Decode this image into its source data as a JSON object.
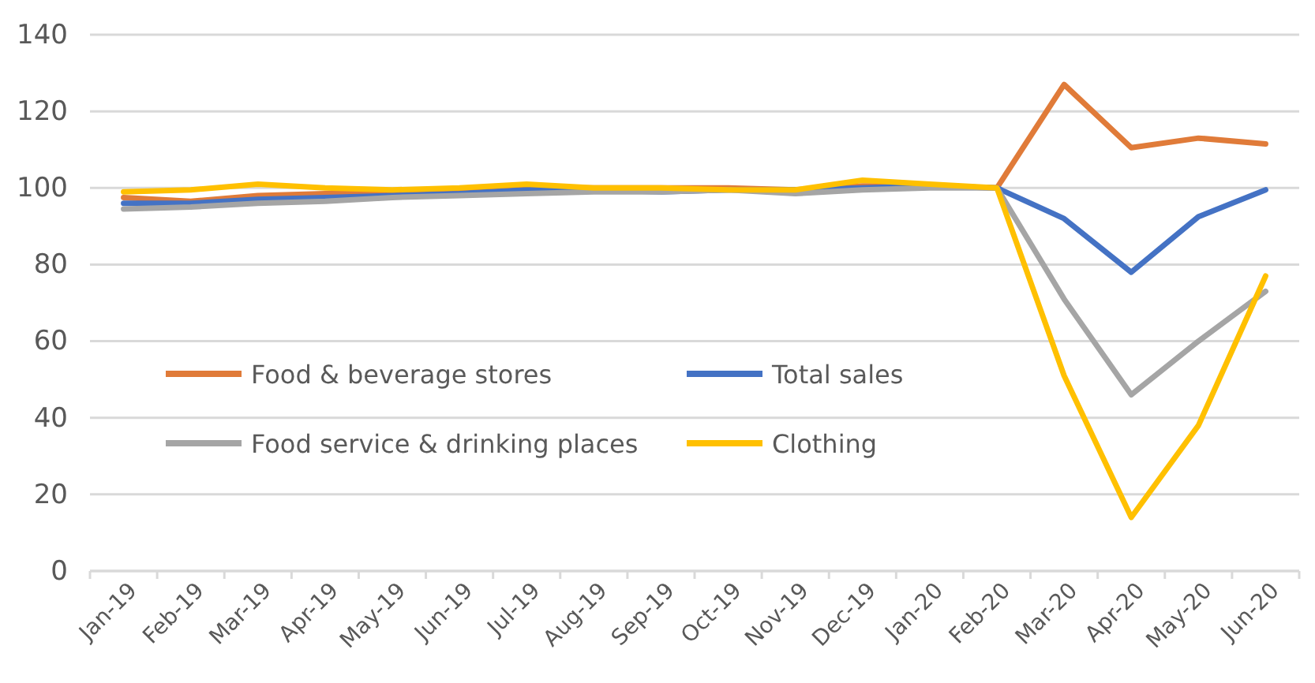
{
  "chart_data": {
    "type": "line",
    "categories": [
      "Jan-19",
      "Feb-19",
      "Mar-19",
      "Apr-19",
      "May-19",
      "Jun-19",
      "Jul-19",
      "Aug-19",
      "Sep-19",
      "Oct-19",
      "Nov-19",
      "Dec-19",
      "Jan-20",
      "Feb-20",
      "Mar-20",
      "Apr-20",
      "May-20",
      "Jun-20"
    ],
    "series": [
      {
        "name": "Food & beverage stores",
        "color": "#e07b39",
        "values": [
          97.5,
          96.5,
          98,
          98.5,
          99,
          99.5,
          100,
          100,
          100,
          100,
          99.5,
          100.5,
          100.5,
          100,
          127,
          110.5,
          113,
          111.5
        ]
      },
      {
        "name": "Total sales",
        "color": "#4472c4",
        "values": [
          96,
          96,
          97,
          97.5,
          98,
          98.5,
          99.5,
          99.5,
          99,
          99.5,
          99.5,
          100,
          100.5,
          100,
          92,
          78,
          92.5,
          99.5
        ]
      },
      {
        "name": "Food service & drinking places",
        "color": "#a5a5a5",
        "values": [
          94.5,
          95,
          96,
          96.5,
          97.5,
          98,
          98.5,
          99,
          99,
          99.5,
          98.5,
          99.5,
          100,
          100,
          71,
          46,
          60,
          73
        ]
      },
      {
        "name": "Clothing",
        "color": "#ffc000",
        "values": [
          99,
          99.5,
          101,
          100,
          99.5,
          100,
          101,
          100,
          100,
          99.5,
          99.5,
          102,
          101,
          100,
          51,
          14,
          38,
          77
        ]
      }
    ],
    "ylim": [
      0,
      140
    ],
    "yticks": [
      0,
      20,
      40,
      60,
      80,
      100,
      120,
      140
    ],
    "grid": "y",
    "legend": "left",
    "marker": "none",
    "line_style": "solid"
  }
}
